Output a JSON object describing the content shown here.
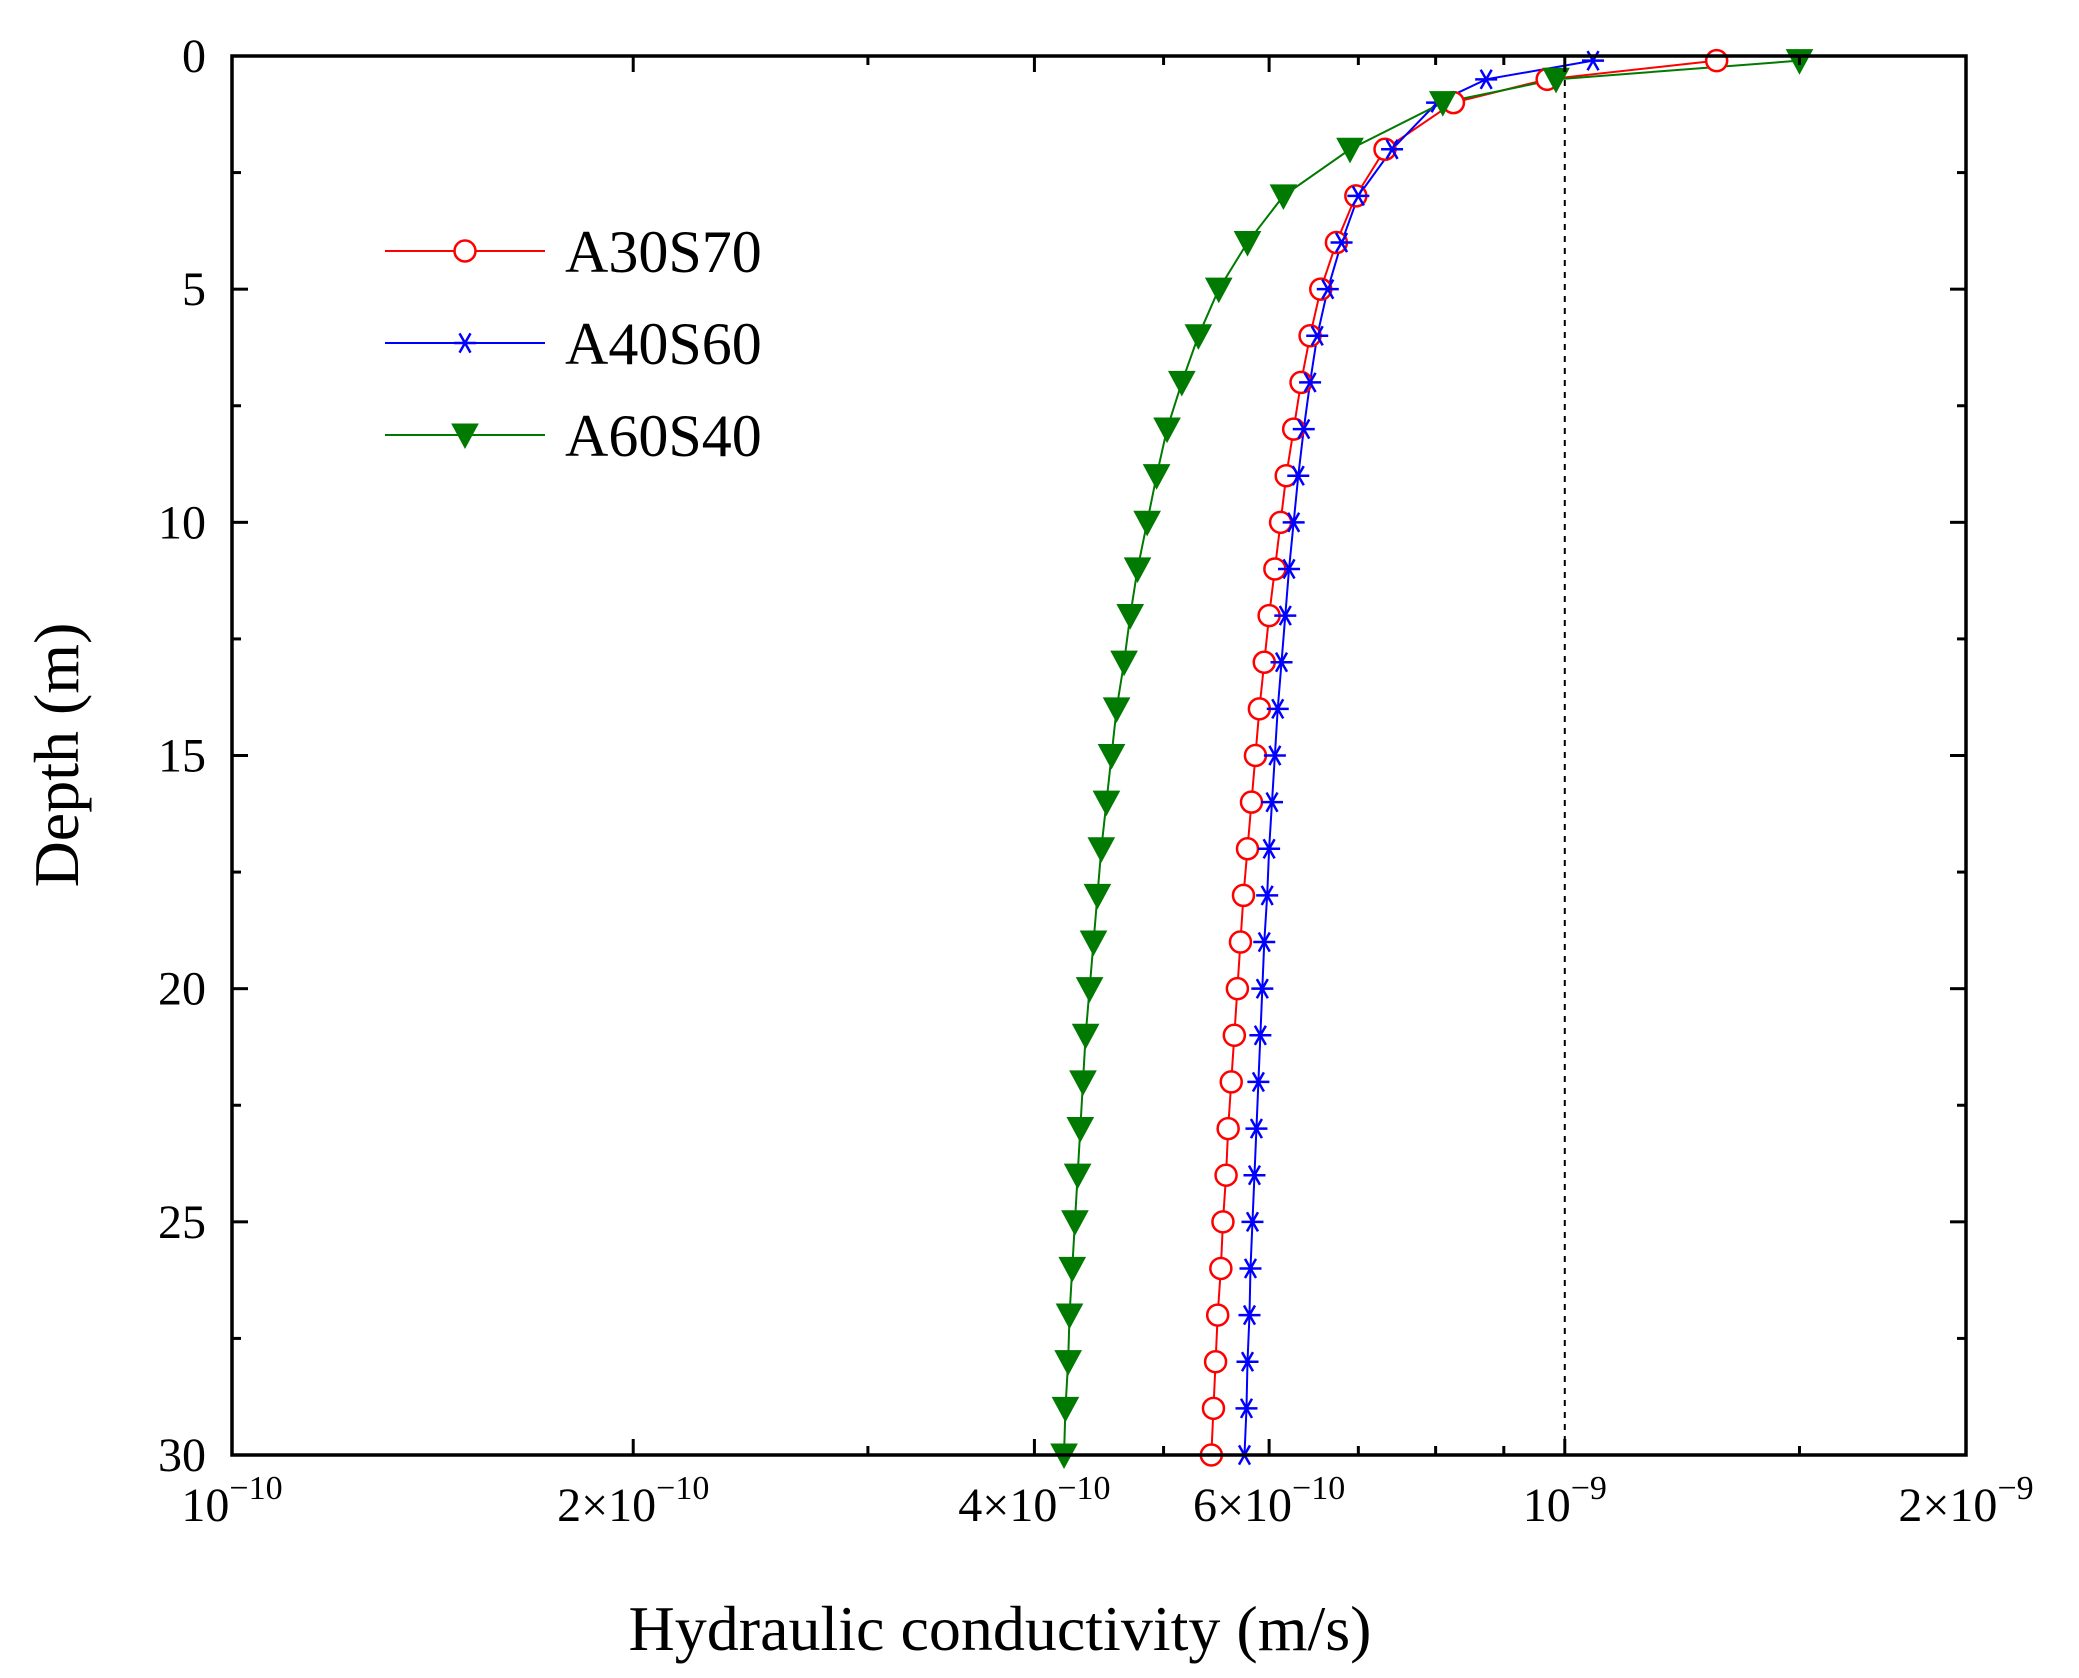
{
  "chart_data": {
    "type": "line",
    "title": "",
    "xlabel": "Hydraulic conductivity (m/s)",
    "ylabel": "Depth (m)",
    "x_scale": "log",
    "xlim": [
      1e-10,
      2e-09
    ],
    "ylim": [
      0,
      30
    ],
    "y_inverted": true,
    "grid": false,
    "legend_position": "top-left",
    "reference_line": {
      "x": 1e-09,
      "style": "dashed"
    },
    "x_ticks": [
      {
        "value": 1e-10,
        "base": "10",
        "exp": "−10"
      },
      {
        "value": 2e-10,
        "base": "2×10",
        "exp": "−10"
      },
      {
        "value": 4e-10,
        "base": "4×10",
        "exp": "−10"
      },
      {
        "value": 6e-10,
        "base": "6×10",
        "exp": "−10"
      },
      {
        "value": 1e-09,
        "base": "10",
        "exp": "−9"
      },
      {
        "value": 2e-09,
        "base": "2×10",
        "exp": "−9"
      }
    ],
    "x_minor_ticks": [
      3e-10,
      5e-10,
      7e-10,
      8e-10,
      9e-10,
      1.5e-09
    ],
    "y_ticks": [
      "0",
      "5",
      "10",
      "15",
      "20",
      "25",
      "30"
    ],
    "y_minor_ticks": [
      2.5,
      7.5,
      12.5,
      17.5,
      22.5,
      27.5
    ],
    "depth": [
      0.1,
      0.5,
      1,
      2,
      3,
      4,
      5,
      6,
      7,
      8,
      9,
      10,
      11,
      12,
      13,
      14,
      15,
      16,
      17,
      18,
      19,
      20,
      21,
      22,
      23,
      24,
      25,
      26,
      27,
      28,
      29,
      30
    ],
    "series": [
      {
        "name": "A30S70",
        "color": "#ff0000",
        "marker": "open-circle",
        "values": [
          1.3e-09,
          9.7e-10,
          8.25e-10,
          7.33e-10,
          6.97e-10,
          6.74e-10,
          6.56e-10,
          6.44e-10,
          6.34e-10,
          6.26e-10,
          6.18e-10,
          6.12e-10,
          6.06e-10,
          6e-10,
          5.95e-10,
          5.9e-10,
          5.86e-10,
          5.82e-10,
          5.78e-10,
          5.74e-10,
          5.71e-10,
          5.68e-10,
          5.65e-10,
          5.62e-10,
          5.59e-10,
          5.57e-10,
          5.54e-10,
          5.52e-10,
          5.49e-10,
          5.47e-10,
          5.45e-10,
          5.43e-10
        ]
      },
      {
        "name": "A40S60",
        "color": "#0000ff",
        "marker": "asterisk",
        "values": [
          1.05e-09,
          8.73e-10,
          8.02e-10,
          7.42e-10,
          7e-10,
          6.8e-10,
          6.64e-10,
          6.52e-10,
          6.44e-10,
          6.37e-10,
          6.31e-10,
          6.26e-10,
          6.21e-10,
          6.17e-10,
          6.13e-10,
          6.09e-10,
          6.06e-10,
          6.03e-10,
          6e-10,
          5.98e-10,
          5.95e-10,
          5.93e-10,
          5.91e-10,
          5.89e-10,
          5.87e-10,
          5.85e-10,
          5.83e-10,
          5.81e-10,
          5.8e-10,
          5.78e-10,
          5.77e-10,
          5.75e-10
        ]
      },
      {
        "name": "A60S40",
        "color": "#007a00",
        "marker": "filled-triangle-down",
        "values": [
          1.5e-09,
          9.85e-10,
          8.1e-10,
          6.9e-10,
          6.15e-10,
          5.78e-10,
          5.5e-10,
          5.31e-10,
          5.16e-10,
          5.03e-10,
          4.94e-10,
          4.86e-10,
          4.78e-10,
          4.72e-10,
          4.67e-10,
          4.61e-10,
          4.57e-10,
          4.53e-10,
          4.49e-10,
          4.46e-10,
          4.43e-10,
          4.4e-10,
          4.37e-10,
          4.35e-10,
          4.33e-10,
          4.31e-10,
          4.29e-10,
          4.27e-10,
          4.25e-10,
          4.24e-10,
          4.22e-10,
          4.21e-10
        ]
      }
    ]
  }
}
